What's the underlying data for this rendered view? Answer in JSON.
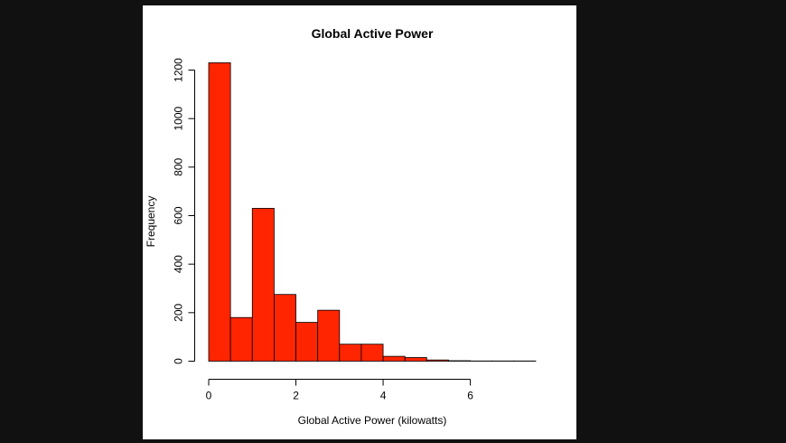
{
  "colors": {
    "viewer_background": "#111111",
    "plot_background": "#ffffff",
    "bar_fill": "#ff2500",
    "bar_stroke": "#000000"
  },
  "chart_data": {
    "type": "bar",
    "title": "Global Active Power",
    "xlabel": "Global Active Power (kilowatts)",
    "ylabel": "Frequency",
    "bin_width": 0.5,
    "bins": [
      {
        "start": 0.0,
        "end": 0.5,
        "count": 1230
      },
      {
        "start": 0.5,
        "end": 1.0,
        "count": 180
      },
      {
        "start": 1.0,
        "end": 1.5,
        "count": 630
      },
      {
        "start": 1.5,
        "end": 2.0,
        "count": 275
      },
      {
        "start": 2.0,
        "end": 2.5,
        "count": 160
      },
      {
        "start": 2.5,
        "end": 3.0,
        "count": 210
      },
      {
        "start": 3.0,
        "end": 3.5,
        "count": 70
      },
      {
        "start": 3.5,
        "end": 4.0,
        "count": 70
      },
      {
        "start": 4.0,
        "end": 4.5,
        "count": 20
      },
      {
        "start": 4.5,
        "end": 5.0,
        "count": 15
      },
      {
        "start": 5.0,
        "end": 5.5,
        "count": 5
      },
      {
        "start": 5.5,
        "end": 6.0,
        "count": 2
      },
      {
        "start": 6.0,
        "end": 6.5,
        "count": 1
      },
      {
        "start": 6.5,
        "end": 7.0,
        "count": 1
      },
      {
        "start": 7.0,
        "end": 7.5,
        "count": 1
      }
    ],
    "xticks": [
      0,
      2,
      4,
      6
    ],
    "yticks": [
      0,
      200,
      400,
      600,
      800,
      1000,
      1200
    ],
    "xlim": [
      0,
      7.5
    ],
    "ylim": [
      0,
      1200
    ],
    "grid": false,
    "legend": "none"
  }
}
